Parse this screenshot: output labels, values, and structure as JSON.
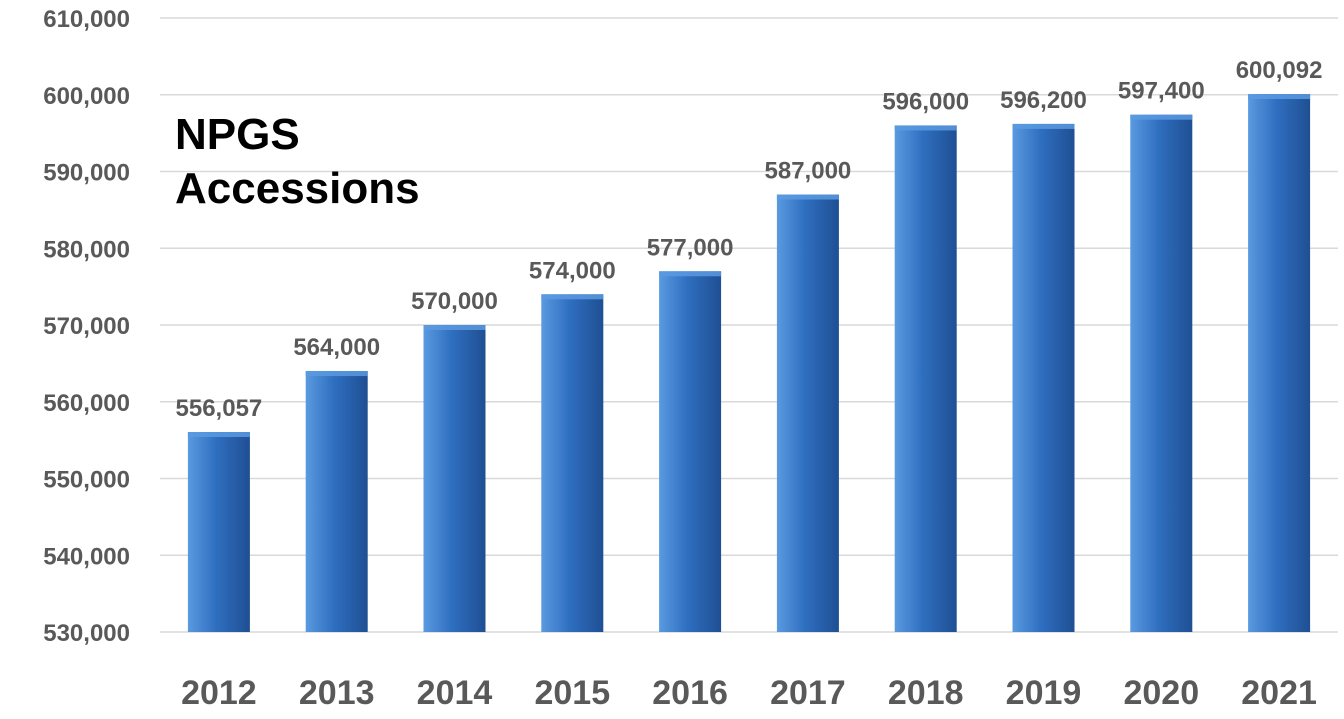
{
  "chart_data": {
    "type": "bar",
    "title_lines": [
      "NPGS",
      "Accessions"
    ],
    "categories": [
      "2012",
      "2013",
      "2014",
      "2015",
      "2016",
      "2017",
      "2018",
      "2019",
      "2020",
      "2021"
    ],
    "values": [
      556057,
      564000,
      570000,
      574000,
      577000,
      587000,
      596000,
      596200,
      597400,
      600092
    ],
    "data_labels": [
      "556,057",
      "564,000",
      "570,000",
      "574,000",
      "577,000",
      "587,000",
      "596,000",
      "596,200",
      "597,400",
      "600,092"
    ],
    "y_ticks": [
      "530,000",
      "540,000",
      "550,000",
      "560,000",
      "570,000",
      "580,000",
      "590,000",
      "600,000",
      "610,000"
    ],
    "ylim": [
      530000,
      610000
    ],
    "grid": true,
    "legend": "none",
    "colors": {
      "bar_light": "#5a9ae0",
      "bar_mid": "#2f6fc0",
      "bar_dark": "#1f4f93",
      "gridline": "#d9d9d9",
      "label_text": "#595959",
      "title_text": "#000000"
    }
  }
}
